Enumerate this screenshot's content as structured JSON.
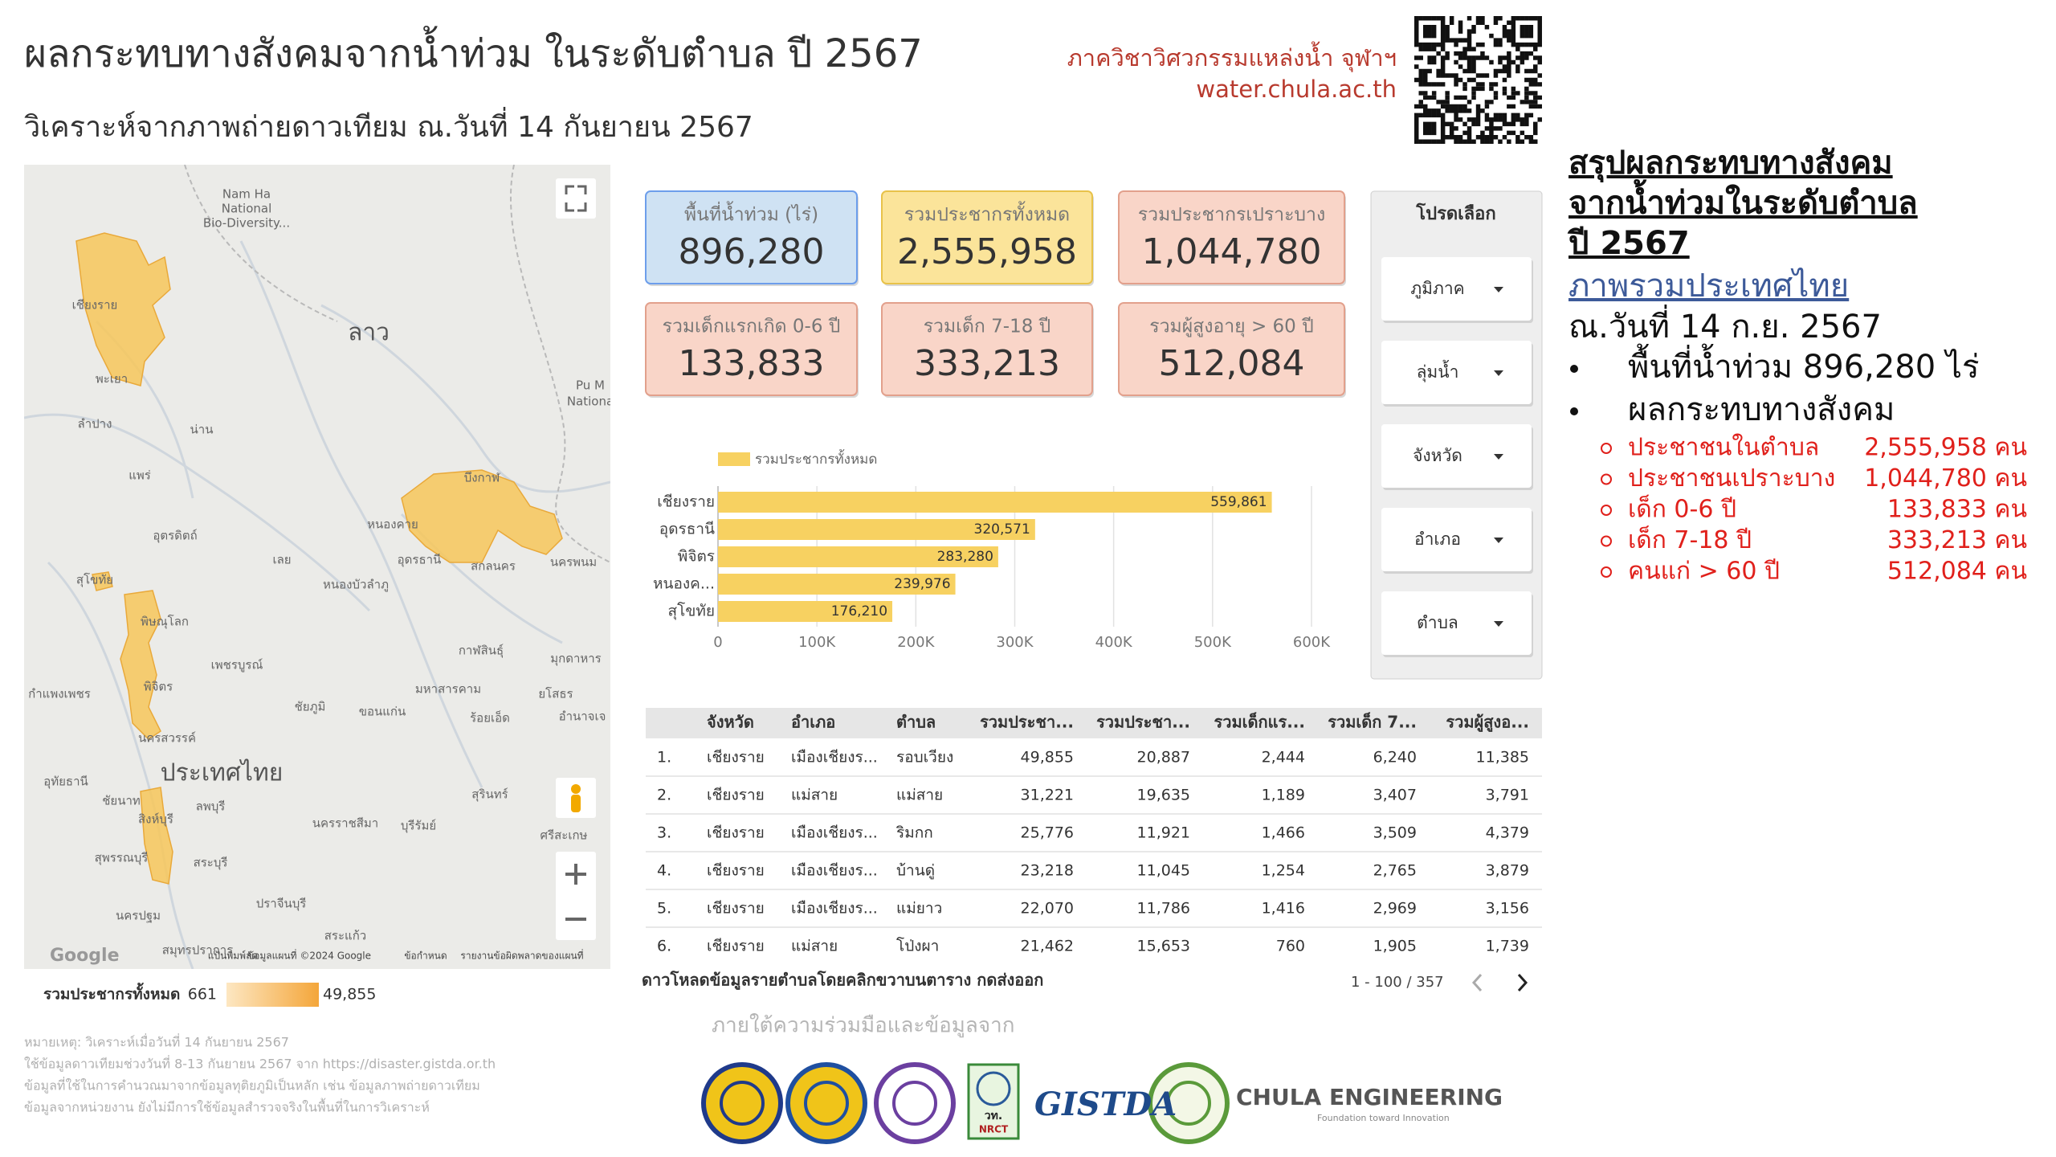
{
  "header": {
    "title": "ผลกระทบทางสังคมจากน้ำท่วม ในระดับตำบล ปี 2567",
    "subtitle": "วิเคราะห์จากภาพถ่ายดาวเทียม ณ.วันที่ 14 กันยายน 2567",
    "org_name": "ภาควิชาวิศวกรรมแหล่งน้ำ จุฬาฯ",
    "org_url": "water.chula.ac.th"
  },
  "map": {
    "labels": [
      "Nam Ha",
      "National",
      "Bio-Diversity...",
      "เชียงราย",
      "ลาว",
      "พะเยา",
      "ลำปาง",
      "น่าน",
      "แพร่",
      "อุตรดิตถ์",
      "บึงกาฬ",
      "หนองคาย",
      "อุดรธานี",
      "สกลนคร",
      "นครพนม",
      "สุโขทัย",
      "เลย",
      "หนองบัวลำภู",
      "พิษณุโลก",
      "กาฬสินธุ์",
      "มุกดาหาร",
      "พิจิตร",
      "เพชรบูรณ์",
      "กำแพงเพชร",
      "มหาสารคาม",
      "ยโสธร",
      "ชัยภูมิ",
      "ขอนแก่น",
      "ร้อยเอ็ด",
      "อำนาจเจ",
      "นครสวรรค์",
      "ประเทศไทย",
      "อุทัยธานี",
      "ชัยนาท",
      "ลพบุรี",
      "สุรินทร์",
      "สิงห์บุรี",
      "นครราชสีมา",
      "บุรีรัมย์",
      "ศรีสะเกษ",
      "สุพรรณบุรี",
      "สระบุรี",
      "ปราจีนบุรี",
      "นครปฐม",
      "สระแก้ว",
      "สมุทรปราการ",
      "Pu M",
      "Nationa"
    ],
    "attribution": [
      "Google",
      "แป้นพิมพ์ลัด",
      "ข้อมูลแผนที่ ©2024 Google",
      "ข้อกำหนด",
      "รายงานข้อผิดพลาดของแผนที่"
    ],
    "legend": {
      "title": "รวมประชากรทั้งหมด",
      "min": "661",
      "max": "49,855"
    }
  },
  "notes": [
    "หมายเหตุ: วิเคราะห์เมื่อวันที่ 14 กันยายน 2567",
    "ใช้ข้อมูลดาวเทียมช่วงวันที่ 8-13 กันยายน 2567 จาก https://disaster.gistda.or.th",
    "ข้อมูลที่ใช้ในการคำนวณมาจากข้อมูลทุติยภูมิเป็นหลัก เช่น ข้อมูลภาพถ่ายดาวเทียม",
    "ข้อมูลจากหน่วยงาน ยังไม่มีการใช้ข้อมูลสำรวจจริงในพื้นที่ในการวิเคราะห์"
  ],
  "kpis": [
    {
      "label": "พื้นที่น้ำท่วม (ไร่)",
      "value": "896,280",
      "color": "#cfe2f3",
      "border": "#6d9eeb"
    },
    {
      "label": "รวมประชากรทั้งหมด",
      "value": "2,555,958",
      "color": "#fbe49a",
      "border": "#e8c24a"
    },
    {
      "label": "รวมประชากรเปราะบาง",
      "value": "1,044,780",
      "color": "#f9d5c8",
      "border": "#e2a08c"
    },
    {
      "label": "รวมเด็กแรกเกิด 0-6 ปี",
      "value": "133,833",
      "color": "#f9d5c8",
      "border": "#e2a08c"
    },
    {
      "label": "รวมเด็ก 7-18 ปี",
      "value": "333,213",
      "color": "#f9d5c8",
      "border": "#e2a08c"
    },
    {
      "label": "รวมผู้สูงอายุ > 60 ปี",
      "value": "512,084",
      "color": "#f9d5c8",
      "border": "#e2a08c"
    }
  ],
  "filters": {
    "title": "โปรดเลือก",
    "options": [
      "ภูมิภาค",
      "ลุ่มน้ำ",
      "จังหวัด",
      "อำเภอ",
      "ตำบล"
    ]
  },
  "chart_data": {
    "type": "bar",
    "orientation": "horizontal",
    "categories": [
      "เชียงราย",
      "อุดรธานี",
      "พิจิตร",
      "หนองค...",
      "สุโขทัย"
    ],
    "series": [
      {
        "name": "รวมประชากรทั้งหมด",
        "color": "#f7d161",
        "values": [
          559861,
          320571,
          283280,
          239976,
          176210
        ],
        "value_labels": [
          "559,861",
          "320,571",
          "283,280",
          "239,976",
          "176,210"
        ]
      }
    ],
    "xlim": [
      0,
      600000
    ],
    "xticks": [
      0,
      {
        "value": 100000,
        "label": "100K"
      },
      {
        "value": 200000,
        "label": "200K"
      },
      {
        "value": 300000,
        "label": "300K"
      },
      {
        "value": 400000,
        "label": "400K"
      },
      {
        "value": 500000,
        "label": "500K"
      },
      {
        "value": 600000,
        "label": "600K"
      }
    ],
    "grid": true
  },
  "table": {
    "headers": [
      "จังหวัด",
      "อำเภอ",
      "ตำบล",
      "รวมประชา...",
      "รวมประชา...",
      "รวมเด็กแร...",
      "รวมเด็ก 7...",
      "รวมผู้สูงอ..."
    ],
    "rows": [
      {
        "index": "1.",
        "cells": [
          "เชียงราย",
          "เมืองเชียงร...",
          "รอบเวียง",
          "49,855",
          "20,887",
          "2,444",
          "6,240",
          "11,385"
        ]
      },
      {
        "index": "2.",
        "cells": [
          "เชียงราย",
          "แม่สาย",
          "แม่สาย",
          "31,221",
          "19,635",
          "1,189",
          "3,407",
          "3,791"
        ]
      },
      {
        "index": "3.",
        "cells": [
          "เชียงราย",
          "เมืองเชียงร...",
          "ริมกก",
          "25,776",
          "11,921",
          "1,466",
          "3,509",
          "4,379"
        ]
      },
      {
        "index": "4.",
        "cells": [
          "เชียงราย",
          "เมืองเชียงร...",
          "บ้านดู่",
          "23,218",
          "11,045",
          "1,254",
          "2,765",
          "3,879"
        ]
      },
      {
        "index": "5.",
        "cells": [
          "เชียงราย",
          "เมืองเชียงร...",
          "แม่ยาว",
          "22,070",
          "11,786",
          "1,416",
          "2,969",
          "3,156"
        ]
      },
      {
        "index": "6.",
        "cells": [
          "เชียงราย",
          "แม่สาย",
          "โป่งผา",
          "21,462",
          "15,653",
          "760",
          "1,905",
          "1,739"
        ]
      }
    ],
    "footer_note": "ดาวโหลดข้อมูลรายตำบลโดยคลิกขวาบนตาราง กดส่งออก",
    "pagination": "1 - 100 / 357"
  },
  "partners": {
    "caption": "ภายใต้ความร่วมมือและข้อมูลจาก",
    "logo_texts": [
      "วท.",
      "NRCT",
      "GISTDA",
      "CHULA ENGINEERING",
      "Foundation toward Innovation"
    ]
  },
  "summary": {
    "title_lines": [
      "สรุปผลกระทบทางสังคม",
      "จากน้ำท่วมในระดับตำบล",
      "ปี 2567"
    ],
    "region_link": "ภาพรวมประเทศไทย",
    "date": "ณ.วันที่ 14 ก.ย. 2567",
    "bullets": [
      "พื้นที่น้ำท่วม 896,280 ไร่",
      "ผลกระทบทางสังคม"
    ],
    "impacts": [
      {
        "label": "ประชาชนในตำบล",
        "value": "2,555,958 คน"
      },
      {
        "label": "ประชาชนเปราะบาง",
        "value": "1,044,780 คน"
      },
      {
        "label": "เด็ก 0-6 ปี",
        "value": "133,833 คน"
      },
      {
        "label": "เด็ก 7-18 ปี",
        "value": "333,213 คน"
      },
      {
        "label": "คนแก่ > 60 ปี",
        "value": "512,084 คน"
      }
    ]
  }
}
